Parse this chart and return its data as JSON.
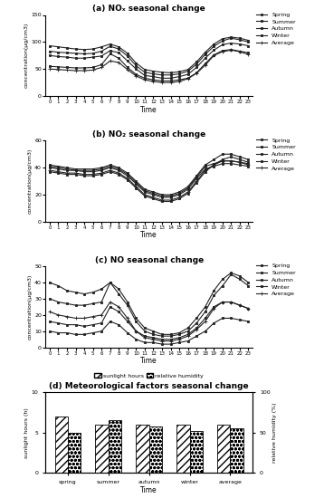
{
  "title_a": "(a) NOₓ seasonal change",
  "title_b": "(b) NO₂ seasonal change",
  "title_c": "(c) NO seasonal change",
  "title_d": "(d) Meteorological factors seasonal change",
  "ylabel_abc": "concentration(μg/cm3)",
  "ylabel_d_left": "sunlight hours (h)",
  "ylabel_d_right": "relative humidity (%)",
  "xlabel": "Time",
  "hours": [
    0,
    1,
    2,
    3,
    4,
    5,
    6,
    7,
    8,
    9,
    10,
    11,
    12,
    13,
    14,
    15,
    16,
    17,
    18,
    19,
    20,
    21,
    22,
    23
  ],
  "legend_labels": [
    "Spring",
    "Summer",
    "Autumn",
    "Winter",
    "Average"
  ],
  "NOx": {
    "Spring": [
      55,
      54,
      53,
      52,
      52,
      53,
      58,
      78,
      70,
      53,
      40,
      33,
      30,
      28,
      28,
      30,
      33,
      43,
      60,
      76,
      84,
      86,
      83,
      80
    ],
    "Summer": [
      75,
      73,
      72,
      70,
      70,
      72,
      74,
      84,
      80,
      65,
      50,
      38,
      36,
      33,
      33,
      36,
      40,
      53,
      70,
      85,
      95,
      98,
      96,
      93
    ],
    "Autumn": [
      83,
      81,
      80,
      79,
      78,
      79,
      83,
      92,
      87,
      74,
      56,
      44,
      41,
      39,
      39,
      41,
      46,
      59,
      77,
      92,
      102,
      107,
      104,
      100
    ],
    "Winter": [
      93,
      91,
      89,
      87,
      86,
      87,
      91,
      96,
      91,
      79,
      61,
      49,
      46,
      44,
      43,
      45,
      49,
      63,
      81,
      96,
      106,
      109,
      107,
      103
    ],
    "Average": [
      50,
      49,
      48,
      47,
      47,
      48,
      53,
      65,
      62,
      49,
      37,
      30,
      27,
      25,
      25,
      27,
      32,
      42,
      57,
      75,
      82,
      85,
      82,
      77
    ]
  },
  "NOx_ylim": [
    0,
    150
  ],
  "NOx_yticks": [
    0,
    50,
    100,
    150
  ],
  "NO2": {
    "Spring": [
      40,
      39,
      38,
      38,
      37,
      37,
      38,
      40,
      38,
      34,
      28,
      22,
      20,
      18,
      18,
      20,
      24,
      32,
      39,
      41,
      43,
      43,
      42,
      41
    ],
    "Summer": [
      37,
      36,
      35,
      35,
      34,
      34,
      35,
      37,
      35,
      31,
      25,
      19,
      17,
      15,
      15,
      17,
      21,
      29,
      37,
      42,
      46,
      48,
      46,
      44
    ],
    "Autumn": [
      42,
      41,
      40,
      39,
      39,
      39,
      40,
      42,
      40,
      36,
      30,
      24,
      22,
      20,
      20,
      22,
      26,
      34,
      42,
      46,
      50,
      50,
      48,
      46
    ],
    "Winter": [
      41,
      40,
      39,
      38,
      38,
      38,
      39,
      41,
      39,
      35,
      29,
      23,
      21,
      19,
      19,
      21,
      25,
      33,
      41,
      43,
      45,
      45,
      44,
      43
    ],
    "Average": [
      38,
      37,
      36,
      36,
      35,
      35,
      36,
      38,
      36,
      32,
      26,
      20,
      18,
      16,
      16,
      18,
      22,
      30,
      38,
      42,
      45,
      45,
      44,
      42
    ]
  },
  "NO2_ylim": [
    0,
    60
  ],
  "NO2_yticks": [
    0,
    20,
    40,
    60
  ],
  "NO": {
    "Spring": [
      16,
      15,
      14,
      14,
      13,
      14,
      15,
      25,
      22,
      16,
      10,
      7,
      6,
      5,
      5,
      6,
      8,
      12,
      18,
      25,
      28,
      28,
      26,
      24
    ],
    "Summer": [
      10,
      9,
      9,
      8,
      8,
      9,
      10,
      16,
      14,
      9,
      5,
      3,
      3,
      2,
      2,
      3,
      4,
      7,
      10,
      15,
      18,
      18,
      17,
      16
    ],
    "Autumn": [
      30,
      28,
      27,
      26,
      26,
      27,
      28,
      40,
      33,
      26,
      16,
      10,
      8,
      7,
      7,
      8,
      10,
      15,
      22,
      32,
      38,
      45,
      42,
      38
    ],
    "Winter": [
      40,
      38,
      35,
      34,
      33,
      34,
      36,
      40,
      36,
      28,
      18,
      12,
      10,
      8,
      8,
      9,
      12,
      18,
      25,
      35,
      42,
      46,
      44,
      40
    ],
    "Average": [
      22,
      20,
      19,
      18,
      18,
      19,
      20,
      28,
      25,
      18,
      10,
      6,
      5,
      4,
      4,
      5,
      7,
      11,
      16,
      24,
      28,
      28,
      26,
      24
    ]
  },
  "NO_ylim": [
    0,
    50
  ],
  "NO_yticks": [
    0,
    10,
    20,
    30,
    40,
    50
  ],
  "met_categories": [
    "spring",
    "summer",
    "autumn",
    "winter",
    "average"
  ],
  "sunlight_hours": [
    7.0,
    6.0,
    6.0,
    6.0,
    6.0
  ],
  "relative_humidity": [
    50,
    65,
    58,
    52,
    55
  ],
  "sunlight_ylim": [
    0,
    10
  ],
  "humidity_ylim": [
    0,
    100
  ],
  "sunlight_yticks": [
    0,
    5,
    10
  ],
  "humidity_yticks": [
    0,
    50,
    100
  ],
  "background_color": "#ffffff",
  "line_color": "#222222",
  "linewidth": 0.8,
  "markersize": 2.5
}
